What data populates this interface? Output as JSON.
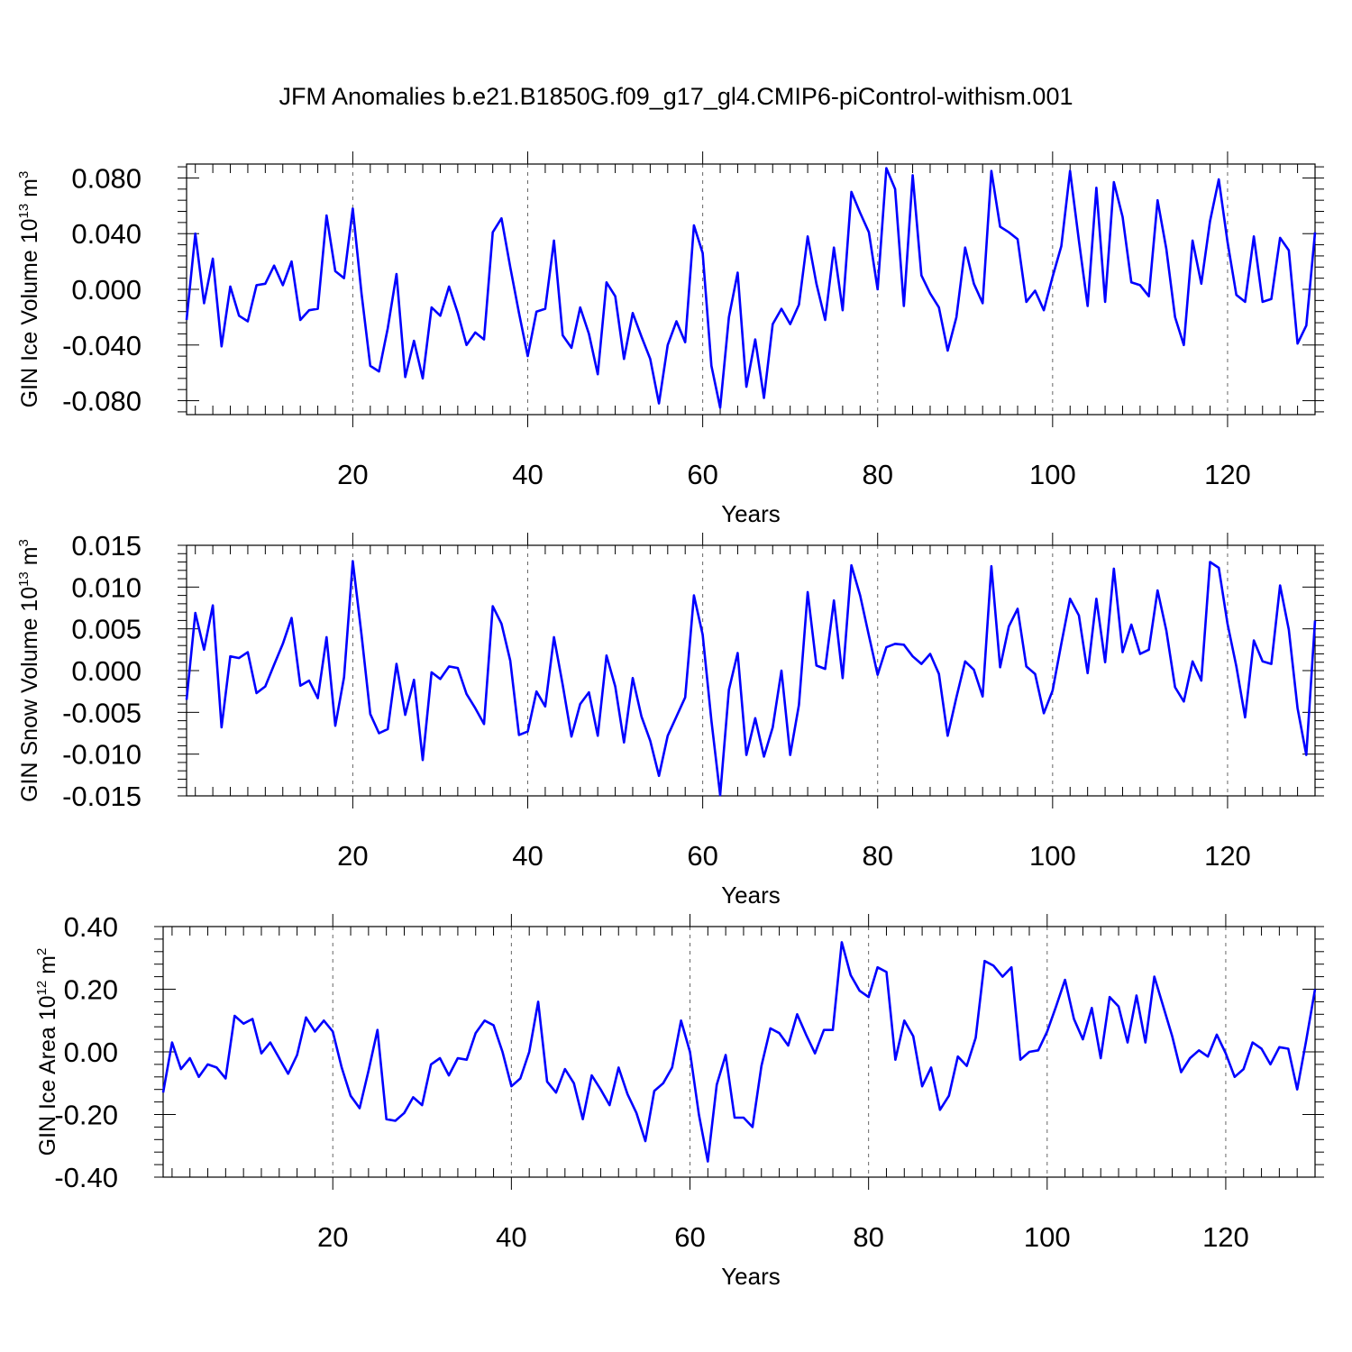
{
  "figure_title": "JFM Anomalies b.e21.B1850G.f09_g17_gl4.CMIP6-piControl-withism.001",
  "line_color": "#0000ff",
  "chart_data": [
    {
      "type": "line",
      "id": "ice-volume",
      "ylabel": "GIN Ice Volume",
      "units_base": "10",
      "units_exp": "13",
      "units_unit": "m",
      "units_unit_exp": "3",
      "xlabel": "Years",
      "xlim": [
        1,
        130
      ],
      "ylim": [
        -0.09,
        0.09
      ],
      "x_ticks": [
        20,
        40,
        60,
        80,
        100,
        120
      ],
      "x_tick_labels": [
        "20",
        "40",
        "60",
        "80",
        "100",
        "120"
      ],
      "y_ticks": [
        0.08,
        0.04,
        0.0,
        -0.04,
        -0.08
      ],
      "y_tick_labels": [
        "0.080",
        "0.040",
        "0.000",
        "-0.040",
        "-0.080"
      ],
      "values": [
        -0.022,
        0.04,
        -0.01,
        0.022,
        -0.041,
        0.002,
        -0.019,
        -0.023,
        0.003,
        0.004,
        0.017,
        0.003,
        0.02,
        -0.022,
        -0.015,
        -0.014,
        0.053,
        0.013,
        0.008,
        0.058,
        -0.003,
        -0.055,
        -0.059,
        -0.028,
        0.011,
        -0.063,
        -0.037,
        -0.064,
        -0.013,
        -0.019,
        0.002,
        -0.017,
        -0.04,
        -0.031,
        -0.036,
        0.041,
        0.051,
        0.016,
        -0.017,
        -0.048,
        -0.016,
        -0.014,
        0.035,
        -0.033,
        -0.042,
        -0.013,
        -0.032,
        -0.061,
        0.005,
        -0.005,
        -0.05,
        -0.017,
        -0.034,
        -0.05,
        -0.082,
        -0.04,
        -0.023,
        -0.038,
        0.046,
        0.026,
        -0.055,
        -0.085,
        -0.02,
        0.012,
        -0.07,
        -0.036,
        -0.078,
        -0.025,
        -0.014,
        -0.025,
        -0.011,
        0.038,
        0.004,
        -0.022,
        0.03,
        -0.015,
        0.07,
        0.055,
        0.041,
        0.0,
        0.087,
        0.072,
        -0.012,
        0.082,
        0.01,
        -0.003,
        -0.013,
        -0.044,
        -0.02,
        0.03,
        0.004,
        -0.01,
        0.085,
        0.045,
        0.041,
        0.036,
        -0.009,
        -0.001,
        -0.015,
        0.009,
        0.031,
        0.085,
        0.035,
        -0.012,
        0.073,
        -0.009,
        0.077,
        0.052,
        0.005,
        0.003,
        -0.005,
        0.064,
        0.029,
        -0.02,
        -0.04,
        0.035,
        0.004,
        0.049,
        0.079,
        0.034,
        -0.004,
        -0.009,
        0.038,
        -0.009,
        -0.007,
        0.037,
        0.028,
        -0.039,
        -0.026,
        0.041
      ]
    },
    {
      "type": "line",
      "id": "snow-volume",
      "ylabel": "GIN Snow Volume",
      "units_base": "10",
      "units_exp": "13",
      "units_unit": "m",
      "units_unit_exp": "3",
      "xlabel": "Years",
      "xlim": [
        1,
        130
      ],
      "ylim": [
        -0.015,
        0.015
      ],
      "x_ticks": [
        20,
        40,
        60,
        80,
        100,
        120
      ],
      "x_tick_labels": [
        "20",
        "40",
        "60",
        "80",
        "100",
        "120"
      ],
      "y_ticks": [
        0.015,
        0.01,
        0.005,
        0.0,
        -0.005,
        -0.01,
        -0.015
      ],
      "y_tick_labels": [
        "0.015",
        "0.010",
        "0.005",
        "0.000",
        "-0.005",
        "-0.010",
        "-0.015"
      ],
      "values": [
        -0.0035,
        0.0069,
        0.0025,
        0.0078,
        -0.0068,
        0.0017,
        0.0015,
        0.0022,
        -0.0027,
        -0.0019,
        0.0007,
        0.0032,
        0.0063,
        -0.0018,
        -0.0012,
        -0.0033,
        0.004,
        -0.0066,
        -0.0008,
        0.0131,
        0.0043,
        -0.0052,
        -0.0075,
        -0.007,
        0.0008,
        -0.0053,
        -0.0011,
        -0.0107,
        -0.0002,
        -0.001,
        0.0005,
        0.0003,
        -0.0028,
        -0.0045,
        -0.0064,
        0.0077,
        0.0056,
        0.0012,
        -0.0077,
        -0.0073,
        -0.0025,
        -0.0043,
        0.004,
        -0.0017,
        -0.0079,
        -0.004,
        -0.0026,
        -0.0078,
        0.0018,
        -0.0019,
        -0.0086,
        -0.0009,
        -0.0055,
        -0.0084,
        -0.0126,
        -0.0078,
        -0.0055,
        -0.0032,
        0.009,
        0.0043,
        -0.006,
        -0.0149,
        -0.0023,
        0.0021,
        -0.0101,
        -0.0057,
        -0.0103,
        -0.0068,
        0.0,
        -0.0101,
        -0.0041,
        0.0094,
        0.0006,
        0.0002,
        0.0084,
        -0.0009,
        0.0126,
        0.009,
        0.0042,
        -0.0005,
        0.0028,
        0.0032,
        0.0031,
        0.0017,
        0.0008,
        0.002,
        -0.0004,
        -0.0078,
        -0.0032,
        0.0011,
        0.0001,
        -0.0031,
        0.0125,
        0.0004,
        0.0053,
        0.0074,
        0.0005,
        -0.0004,
        -0.0051,
        -0.0024,
        0.0032,
        0.0086,
        0.0066,
        -0.0003,
        0.0086,
        0.001,
        0.0122,
        0.0022,
        0.0055,
        0.002,
        0.0025,
        0.0096,
        0.0048,
        -0.002,
        -0.0037,
        0.0011,
        -0.0012,
        0.013,
        0.0123,
        0.0056,
        0.0005,
        -0.0056,
        0.0036,
        0.0011,
        0.0008,
        0.0102,
        0.0049,
        -0.0045,
        -0.0101,
        0.006
      ]
    },
    {
      "type": "line",
      "id": "ice-area",
      "ylabel": "GIN Ice Area",
      "units_base": "10",
      "units_exp": "12",
      "units_unit": "m",
      "units_unit_exp": "2",
      "xlabel": "Years",
      "xlim": [
        1,
        130
      ],
      "ylim": [
        -0.4,
        0.4
      ],
      "x_ticks": [
        20,
        40,
        60,
        80,
        100,
        120
      ],
      "x_tick_labels": [
        "20",
        "40",
        "60",
        "80",
        "100",
        "120"
      ],
      "y_ticks": [
        0.4,
        0.2,
        0.0,
        -0.2,
        -0.4
      ],
      "y_tick_labels": [
        "0.40",
        "0.20",
        "0.00",
        "-0.20",
        "-0.40"
      ],
      "values": [
        -0.13,
        0.03,
        -0.055,
        -0.02,
        -0.08,
        -0.04,
        -0.05,
        -0.085,
        0.115,
        0.09,
        0.105,
        -0.005,
        0.03,
        -0.02,
        -0.07,
        -0.01,
        0.11,
        0.065,
        0.1,
        0.065,
        -0.05,
        -0.14,
        -0.18,
        -0.06,
        0.07,
        -0.215,
        -0.22,
        -0.195,
        -0.145,
        -0.17,
        -0.04,
        -0.02,
        -0.075,
        -0.02,
        -0.025,
        0.06,
        0.1,
        0.085,
        0.0,
        -0.11,
        -0.085,
        0.0,
        0.16,
        -0.095,
        -0.13,
        -0.055,
        -0.1,
        -0.215,
        -0.075,
        -0.12,
        -0.17,
        -0.05,
        -0.135,
        -0.195,
        -0.285,
        -0.125,
        -0.1,
        -0.05,
        0.1,
        0.0,
        -0.2,
        -0.35,
        -0.105,
        -0.01,
        -0.21,
        -0.21,
        -0.24,
        -0.045,
        0.075,
        0.06,
        0.02,
        0.12,
        0.055,
        -0.005,
        0.07,
        0.07,
        0.35,
        0.245,
        0.195,
        0.175,
        0.27,
        0.255,
        -0.025,
        0.1,
        0.05,
        -0.11,
        -0.05,
        -0.185,
        -0.14,
        -0.015,
        -0.045,
        0.045,
        0.29,
        0.275,
        0.24,
        0.27,
        -0.025,
        0.0,
        0.005,
        0.065,
        0.145,
        0.23,
        0.105,
        0.04,
        0.14,
        -0.02,
        0.175,
        0.145,
        0.03,
        0.18,
        0.03,
        0.24,
        0.145,
        0.05,
        -0.065,
        -0.02,
        0.005,
        -0.015,
        0.055,
        -0.005,
        -0.08,
        -0.055,
        0.03,
        0.01,
        -0.04,
        0.015,
        0.01,
        -0.12,
        0.035,
        0.2
      ]
    }
  ]
}
